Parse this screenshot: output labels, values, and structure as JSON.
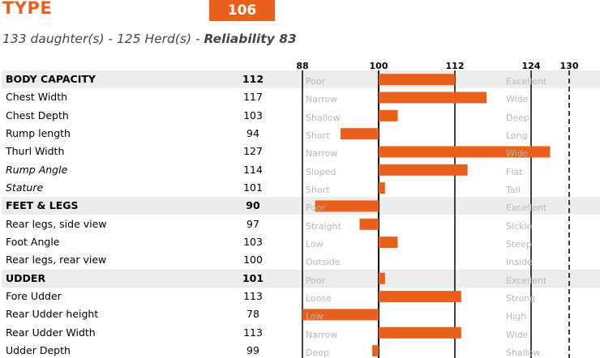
{
  "header": {
    "title": "TYPE",
    "score": "106",
    "subtitle_prefix": "133 daughter(s) - 125 Herd(s) - ",
    "reliability_label": "Reliability 83"
  },
  "colors": {
    "accent": "#e8601c",
    "group_bg": "#ececec",
    "scale_text": "#b8b8b8"
  },
  "chart_data": {
    "type": "bar",
    "orientation": "horizontal",
    "baseline": 100,
    "xlim": [
      88,
      130
    ],
    "ticks": [
      88,
      100,
      112,
      124,
      130
    ],
    "grid": "solid lines at 88, 100, 112, 124; dashed line at 130",
    "rows": [
      {
        "label": "BODY CAPACITY",
        "value": 112,
        "low": "Poor",
        "high": "Excellent",
        "group": true
      },
      {
        "label": "Chest Width",
        "value": 117,
        "low": "Narrow",
        "high": "Wide"
      },
      {
        "label": "Chest Depth",
        "value": 103,
        "low": "Shallow",
        "high": "Deep"
      },
      {
        "label": "Rump length",
        "value": 94,
        "low": "Short",
        "high": "Long"
      },
      {
        "label": "Thurl Width",
        "value": 127,
        "low": "Narrow",
        "high": "Wide"
      },
      {
        "label": "Rump Angle",
        "value": 114,
        "low": "Sloped",
        "high": "Flat",
        "italic": true
      },
      {
        "label": "Stature",
        "value": 101,
        "low": "Short",
        "high": "Tall",
        "italic": true
      },
      {
        "label": "FEET & LEGS",
        "value": 90,
        "low": "Poor",
        "high": "Excellent",
        "group": true
      },
      {
        "label": "Rear legs, side view",
        "value": 97,
        "low": "Straight",
        "high": "Sickle"
      },
      {
        "label": "Foot Angle",
        "value": 103,
        "low": "Low",
        "high": "Steep"
      },
      {
        "label": "Rear legs, rear view",
        "value": 100,
        "low": "Outside",
        "high": "Inside"
      },
      {
        "label": "UDDER",
        "value": 101,
        "low": "Poor",
        "high": "Excellent",
        "group": true
      },
      {
        "label": "Fore Udder",
        "value": 113,
        "low": "Loose",
        "high": "Strong"
      },
      {
        "label": "Rear Udder height",
        "value": 78,
        "low": "Low",
        "high": "High"
      },
      {
        "label": "Rear Udder Width",
        "value": 113,
        "low": "Narrow",
        "high": "Wide"
      },
      {
        "label": "Udder Depth",
        "value": 99,
        "low": "Deep",
        "high": "Shallow"
      }
    ]
  }
}
